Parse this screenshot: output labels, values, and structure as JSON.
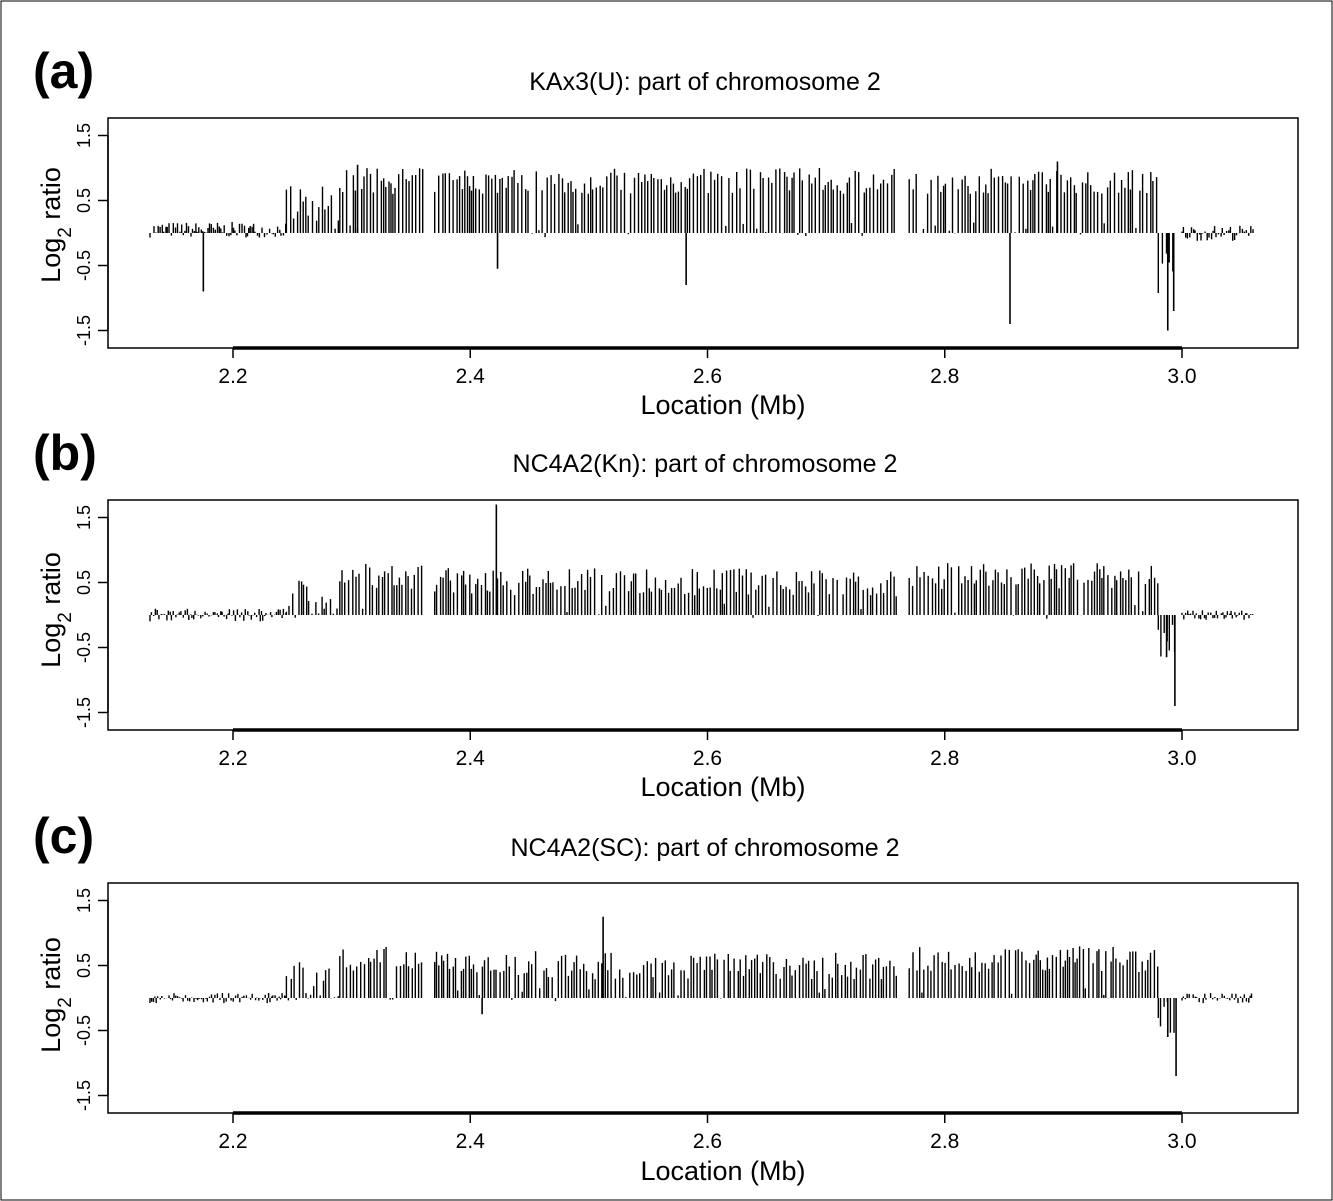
{
  "figure": {
    "panels": [
      {
        "letter": "(a)",
        "title": "KAx3(U): part of chromosome 2",
        "xlabel": "Location (Mb)",
        "ylabel_main": "Log",
        "ylabel_sub": "2",
        "ylabel_rest": " ratio"
      },
      {
        "letter": "(b)",
        "title": "NC4A2(Kn): part of chromosome 2",
        "xlabel": "Location (Mb)",
        "ylabel_main": "Log",
        "ylabel_sub": "2",
        "ylabel_rest": " ratio"
      },
      {
        "letter": "(c)",
        "title": "NC4A2(SC): part of chromosome 2",
        "xlabel": "Location (Mb)",
        "ylabel_main": "Log",
        "ylabel_sub": "2",
        "ylabel_rest": " ratio"
      }
    ]
  },
  "chart_data": [
    {
      "type": "bar",
      "title": "KAx3(U): part of chromosome 2",
      "xlabel": "Location (Mb)",
      "ylabel": "Log2 ratio",
      "xlim": [
        2.1,
        3.05
      ],
      "ylim": [
        -1.5,
        1.5
      ],
      "xticks": [
        "2.2",
        "2.4",
        "2.6",
        "2.8",
        "3.0"
      ],
      "yticks": [
        "-1.5",
        "-0.5",
        "0.5",
        "1.5"
      ],
      "segments": [
        {
          "start": 2.13,
          "end": 2.245,
          "level": 0.05,
          "spread": 0.12
        },
        {
          "start": 2.245,
          "end": 2.29,
          "level": 0.4,
          "spread": 0.35
        },
        {
          "start": 2.29,
          "end": 2.36,
          "level": 0.8,
          "spread": 0.2
        },
        {
          "start": 2.37,
          "end": 2.76,
          "level": 0.8,
          "spread": 0.2
        },
        {
          "start": 2.77,
          "end": 2.98,
          "level": 0.8,
          "spread": 0.2
        },
        {
          "start": 2.98,
          "end": 2.995,
          "level": -0.6,
          "spread": 0.4
        },
        {
          "start": 3.0,
          "end": 3.06,
          "level": 0.0,
          "spread": 0.12
        }
      ],
      "outliers": [
        {
          "x": 2.175,
          "y": -0.9
        },
        {
          "x": 2.423,
          "y": -0.55
        },
        {
          "x": 2.582,
          "y": -0.8
        },
        {
          "x": 2.855,
          "y": -1.4
        },
        {
          "x": 2.988,
          "y": -1.5
        },
        {
          "x": 2.993,
          "y": -1.2
        },
        {
          "x": 2.895,
          "y": 1.1
        },
        {
          "x": 2.305,
          "y": 1.05
        }
      ]
    },
    {
      "type": "bar",
      "title": "NC4A2(Kn): part of chromosome 2",
      "xlabel": "Location (Mb)",
      "ylabel": "Log2 ratio",
      "xlim": [
        2.1,
        3.05
      ],
      "ylim": [
        -1.5,
        1.5
      ],
      "xticks": [
        "2.2",
        "2.4",
        "2.6",
        "2.8",
        "3.0"
      ],
      "yticks": [
        "-1.5",
        "-0.5",
        "0.5",
        "1.5"
      ],
      "segments": [
        {
          "start": 2.13,
          "end": 2.245,
          "level": 0.0,
          "spread": 0.1
        },
        {
          "start": 2.245,
          "end": 2.29,
          "level": 0.25,
          "spread": 0.3
        },
        {
          "start": 2.29,
          "end": 2.36,
          "level": 0.6,
          "spread": 0.2
        },
        {
          "start": 2.37,
          "end": 2.76,
          "level": 0.5,
          "spread": 0.22
        },
        {
          "start": 2.77,
          "end": 2.98,
          "level": 0.6,
          "spread": 0.2
        },
        {
          "start": 2.98,
          "end": 2.995,
          "level": -0.4,
          "spread": 0.3
        },
        {
          "start": 3.0,
          "end": 3.06,
          "level": 0.0,
          "spread": 0.08
        }
      ],
      "outliers": [
        {
          "x": 2.422,
          "y": 1.7
        },
        {
          "x": 2.994,
          "y": -1.4
        },
        {
          "x": 2.987,
          "y": -0.65
        }
      ]
    },
    {
      "type": "bar",
      "title": "NC4A2(SC): part of chromosome 2",
      "xlabel": "Location (Mb)",
      "ylabel": "Log2 ratio",
      "xlim": [
        2.1,
        3.05
      ],
      "ylim": [
        -1.5,
        1.5
      ],
      "xticks": [
        "2.2",
        "2.4",
        "2.6",
        "2.8",
        "3.0"
      ],
      "yticks": [
        "-1.5",
        "-0.5",
        "0.5",
        "1.5"
      ],
      "segments": [
        {
          "start": 2.13,
          "end": 2.245,
          "level": 0.0,
          "spread": 0.08
        },
        {
          "start": 2.245,
          "end": 2.29,
          "level": 0.25,
          "spread": 0.3
        },
        {
          "start": 2.29,
          "end": 2.36,
          "level": 0.6,
          "spread": 0.2
        },
        {
          "start": 2.37,
          "end": 2.76,
          "level": 0.5,
          "spread": 0.22
        },
        {
          "start": 2.77,
          "end": 2.98,
          "level": 0.6,
          "spread": 0.2
        },
        {
          "start": 2.98,
          "end": 2.995,
          "level": -0.3,
          "spread": 0.25
        },
        {
          "start": 3.0,
          "end": 3.06,
          "level": 0.0,
          "spread": 0.08
        }
      ],
      "outliers": [
        {
          "x": 2.512,
          "y": 1.25
        },
        {
          "x": 2.995,
          "y": -1.2
        },
        {
          "x": 2.988,
          "y": -0.6
        },
        {
          "x": 2.41,
          "y": -0.25
        }
      ]
    }
  ]
}
